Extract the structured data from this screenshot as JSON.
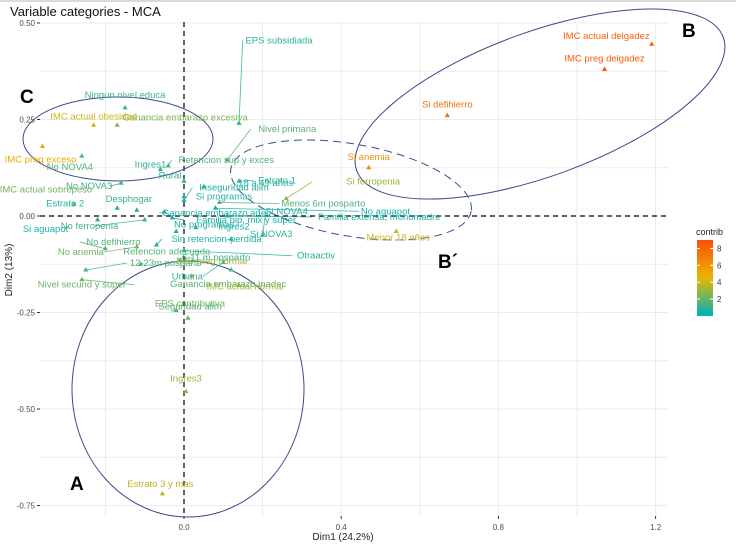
{
  "chart_data": {
    "type": "scatter",
    "title": "Variable categories - MCA",
    "xlabel": "Dim1 (24.2%)",
    "ylabel": "Dim2 (13%)",
    "xlim": [
      -0.46,
      1.27
    ],
    "ylim": [
      -0.77,
      0.55
    ],
    "x_ticks": [
      0.0,
      0.4,
      0.8,
      1.2
    ],
    "x_tick_labels": [
      "0.0",
      "0.4",
      "0.8",
      "1.2"
    ],
    "y_ticks": [
      0.5,
      0.25,
      0.0,
      -0.25,
      -0.5,
      -0.75
    ],
    "y_tick_labels": [
      "0.50",
      "0.25",
      "0.00",
      "-0.25",
      "-0.50",
      "-0.75"
    ],
    "grid": true,
    "reference_lines": {
      "x": 0,
      "y": 0,
      "style": "dashed"
    },
    "legend": {
      "title": "contrib",
      "placement": "right",
      "type": "gradient",
      "ticks": [
        2,
        4,
        6,
        8
      ],
      "range": [
        0,
        9
      ],
      "colors": [
        "#00AFBB",
        "#E7B800",
        "#FC4E07"
      ]
    },
    "points": [
      {
        "label": "IMC actual delgadez",
        "x": 1.19,
        "y": 0.445,
        "contrib": 8.2
      },
      {
        "label": "IMC preg delgadez",
        "x": 1.07,
        "y": 0.38,
        "contrib": 8.6
      },
      {
        "label": "Si defihierro",
        "x": 0.67,
        "y": 0.26,
        "contrib": 7.6
      },
      {
        "label": "Si anemia",
        "x": 0.47,
        "y": 0.125,
        "contrib": 6.2
      },
      {
        "label": "Si ferropenia",
        "x": 0.26,
        "y": 0.045,
        "contrib": 3.0
      },
      {
        "label": "Menor 18 años",
        "x": 0.54,
        "y": -0.04,
        "contrib": 3.8
      },
      {
        "label": "Ningun nivel educa",
        "x": -0.15,
        "y": 0.28,
        "contrib": 1.2
      },
      {
        "label": "Ganancia embarazo excesiva",
        "x": -0.17,
        "y": 0.235,
        "contrib": 2.4
      },
      {
        "label": "IMC actual obesidad",
        "x": -0.23,
        "y": 0.235,
        "contrib": 4.0
      },
      {
        "label": "IMC preg exceso",
        "x": -0.36,
        "y": 0.18,
        "contrib": 5.0
      },
      {
        "label": "No NOVA4",
        "x": -0.26,
        "y": 0.155,
        "contrib": 1.6
      },
      {
        "label": "Retencion sup y exces",
        "x": -0.04,
        "y": 0.13,
        "contrib": 1.5
      },
      {
        "label": "Ingres1",
        "x": -0.06,
        "y": 0.12,
        "contrib": 0.9
      },
      {
        "label": "EPS subsidiada",
        "x": 0.14,
        "y": 0.24,
        "contrib": 0.8
      },
      {
        "label": "Rural",
        "x": 0.0,
        "y": 0.09,
        "contrib": 0.9
      },
      {
        "label": "No NOVA3",
        "x": -0.16,
        "y": 0.085,
        "contrib": 1.2
      },
      {
        "label": "Si programas",
        "x": 0.0,
        "y": 0.05,
        "contrib": 0.6
      },
      {
        "label": "Nivel primaria",
        "x": 0.11,
        "y": 0.145,
        "contrib": 1.8
      },
      {
        "label": "Estrato 1",
        "x": 0.14,
        "y": 0.09,
        "contrib": 1.0
      },
      {
        "label": "Inseguridad alim",
        "x": 0.0,
        "y": 0.04,
        "contrib": 0.7
      },
      {
        "label": "IMC actual sobrepeso",
        "x": -0.28,
        "y": 0.03,
        "contrib": 2.2
      },
      {
        "label": "Desphogar",
        "x": -0.12,
        "y": 0.015,
        "contrib": 1.0
      },
      {
        "label": "18 a 49 años",
        "x": 0.05,
        "y": 0.075,
        "contrib": 0.6
      },
      {
        "label": "Menos 6m posparto",
        "x": 0.09,
        "y": 0.035,
        "contrib": 1.5
      },
      {
        "label": "Estrato 2",
        "x": -0.17,
        "y": 0.02,
        "contrib": 0.7
      },
      {
        "label": "Ganancia embarazo adec",
        "x": -0.05,
        "y": 0.01,
        "contrib": 0.5
      },
      {
        "label": "No aguapot",
        "x": 0.08,
        "y": 0.02,
        "contrib": 0.4
      },
      {
        "label": "No ferropenia",
        "x": -0.1,
        "y": -0.01,
        "contrib": 1.3
      },
      {
        "label": "Si aguapot",
        "x": -0.22,
        "y": -0.01,
        "contrib": 0.5
      },
      {
        "label": "Familia bip, mix y super",
        "x": -0.03,
        "y": -0.005,
        "contrib": 0.4
      },
      {
        "label": "Familia extensa, monomadre",
        "x": 0.11,
        "y": 0.0,
        "contrib": 0.6
      },
      {
        "label": "No anemia",
        "x": -0.12,
        "y": -0.08,
        "contrib": 2.2
      },
      {
        "label": "No defihierro",
        "x": -0.2,
        "y": -0.085,
        "contrib": 1.6
      },
      {
        "label": "No programas",
        "x": -0.02,
        "y": -0.04,
        "contrib": 0.6
      },
      {
        "label": "Ingres2",
        "x": 0.03,
        "y": -0.03,
        "contrib": 0.5
      },
      {
        "label": "Si NOVA3",
        "x": 0.12,
        "y": -0.06,
        "contrib": 1.0
      },
      {
        "label": "Si NOVA4",
        "x": 0.2,
        "y": -0.05,
        "contrib": 0.9
      },
      {
        "label": "Sin retencion-perdida",
        "x": -0.07,
        "y": -0.075,
        "contrib": 0.6
      },
      {
        "label": "Urbana",
        "x": 0.1,
        "y": -0.12,
        "contrib": 0.9
      },
      {
        "label": "6-11 m posparto",
        "x": -0.01,
        "y": -0.115,
        "contrib": 1.0
      },
      {
        "label": "Otraactiv",
        "x": 0.0,
        "y": -0.09,
        "contrib": 0.7
      },
      {
        "label": "Ganancia embarazo inadec",
        "x": 0.12,
        "y": -0.14,
        "contrib": 1.7
      },
      {
        "label": "12-23m posparto",
        "x": -0.25,
        "y": -0.14,
        "contrib": 1.5
      },
      {
        "label": "Retencion adecuada",
        "x": -0.11,
        "y": -0.125,
        "contrib": 1.6
      },
      {
        "label": "Nivel secund y super",
        "x": -0.26,
        "y": -0.165,
        "contrib": 2.0
      },
      {
        "label": "IMC preg normal",
        "x": 0.02,
        "y": -0.155,
        "contrib": 3.2
      },
      {
        "label": "IMC actual normal",
        "x": 0.14,
        "y": -0.18,
        "contrib": 3.4
      },
      {
        "label": "Seguridad alim",
        "x": -0.02,
        "y": -0.245,
        "contrib": 1.6
      },
      {
        "label": "EPS contributiva",
        "x": 0.01,
        "y": -0.265,
        "contrib": 2.2
      },
      {
        "label": "Ingres3",
        "x": 0.005,
        "y": -0.455,
        "contrib": 3.0
      },
      {
        "label": "Estrato 3 y mas",
        "x": -0.055,
        "y": -0.72,
        "contrib": 3.6
      }
    ],
    "annotations": [
      {
        "text": "A",
        "region": "ellipse around Estrato 3 y mas / Ingres3 / EPS contributiva"
      },
      {
        "text": "B",
        "region": "ellipse around IMC delgadez, Si defihierro, Si anemia"
      },
      {
        "text": "B´",
        "region": "dashed ellipse around Si ferropenia / Menor 18 años"
      },
      {
        "text": "C",
        "region": "ellipse around IMC actual obesidad / IMC preg exceso"
      }
    ]
  }
}
